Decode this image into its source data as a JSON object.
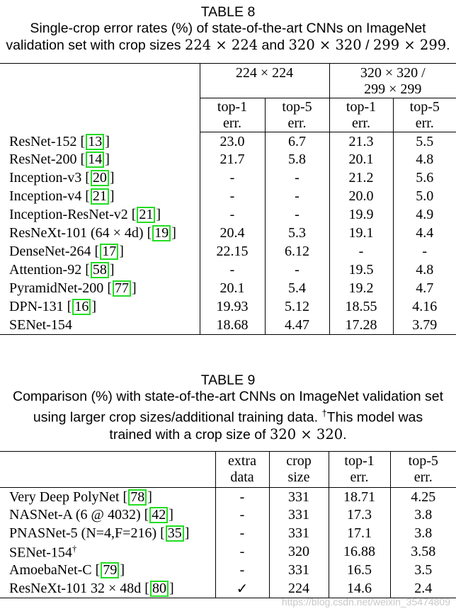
{
  "table8": {
    "label": "TABLE 8",
    "caption_line1": "Single-crop error rates (%) of state-of-the-art CNNs on ImageNet",
    "caption_line2_prefix": "validation set with crop sizes ",
    "caption_line2_math1": "224 × 224",
    "caption_line2_mid": " and ",
    "caption_line2_math2": "320 × 320",
    "caption_line2_suffix": " / ",
    "caption_line2_math3": "299 × 299",
    "caption_line2_end": ".",
    "group1": "224 × 224",
    "group2_line1": "320 × 320 /",
    "group2_line2": "299 × 299",
    "col_top1_a": "top-1",
    "col_err_a": "err.",
    "col_top5_a": "top-5",
    "col_err_b": "err.",
    "col_top1_b": "top-1",
    "col_err_c": "err.",
    "col_top5_b": "top-5",
    "col_err_d": "err.",
    "rows": [
      {
        "name": "ResNet-152 ",
        "ref": "13",
        "v": [
          "23.0",
          "6.7",
          "21.3",
          "5.5"
        ]
      },
      {
        "name": "ResNet-200 ",
        "ref": "14",
        "v": [
          "21.7",
          "5.8",
          "20.1",
          "4.8"
        ]
      },
      {
        "name": "Inception-v3 ",
        "ref": "20",
        "v": [
          "-",
          "-",
          "21.2",
          "5.6"
        ]
      },
      {
        "name": "Inception-v4 ",
        "ref": "21",
        "v": [
          "-",
          "-",
          "20.0",
          "5.0"
        ]
      },
      {
        "name": "Inception-ResNet-v2 ",
        "ref": "21",
        "v": [
          "-",
          "-",
          "19.9",
          "4.9"
        ]
      },
      {
        "name": "ResNeXt-101 (64 × 4d) ",
        "ref": "19",
        "v": [
          "20.4",
          "5.3",
          "19.1",
          "4.4"
        ]
      },
      {
        "name": "DenseNet-264 ",
        "ref": "17",
        "v": [
          "22.15",
          "6.12",
          "-",
          "-"
        ]
      },
      {
        "name": "Attention-92 ",
        "ref": "58",
        "v": [
          "-",
          "-",
          "19.5",
          "4.8"
        ]
      },
      {
        "name": "PyramidNet-200 ",
        "ref": "77",
        "v": [
          "20.1",
          "5.4",
          "19.2",
          "4.7"
        ]
      },
      {
        "name": "DPN-131 ",
        "ref": "16",
        "v": [
          "19.93",
          "5.12",
          "18.55",
          "4.16"
        ]
      },
      {
        "name": "SENet-154",
        "ref": "",
        "v": [
          "18.68",
          "4.47",
          "17.28",
          "3.79"
        ]
      }
    ]
  },
  "table9": {
    "label": "TABLE 9",
    "caption_line1": "Comparison (%) with state-of-the-art CNNs on ImageNet validation set",
    "caption_line2_text": "using larger crop sizes/additional training data. ",
    "caption_line2_dagger": "†",
    "caption_line2_rest": "This model was",
    "caption_line3_prefix": "trained with a crop size of ",
    "caption_line3_math": "320 × 320",
    "caption_line3_end": ".",
    "col_extra1": "extra",
    "col_extra2": "data",
    "col_crop1": "crop",
    "col_crop2": "size",
    "col_top1": "top-1",
    "col_err1": "err.",
    "col_top5": "top-5",
    "col_err2": "err.",
    "rows": [
      {
        "name": "Very Deep PolyNet ",
        "ref": "78",
        "dagger": "",
        "v": [
          "-",
          "331",
          "18.71",
          "4.25"
        ]
      },
      {
        "name": "NASNet-A (6 @ 4032) ",
        "ref": "42",
        "dagger": "",
        "v": [
          "-",
          "331",
          "17.3",
          "3.8"
        ]
      },
      {
        "name": "PNASNet-5 (N=4,F=216) ",
        "ref": "35",
        "dagger": "",
        "v": [
          "-",
          "331",
          "17.1",
          "3.8"
        ]
      },
      {
        "name": "SENet-154",
        "ref": "",
        "dagger": "†",
        "v": [
          "-",
          "320",
          "16.88",
          "3.58"
        ]
      },
      {
        "name": "AmoebaNet-C ",
        "ref": "79",
        "dagger": "",
        "v": [
          "-",
          "331",
          "16.5",
          "3.5"
        ]
      },
      {
        "name": "ResNeXt-101 32 × 48d ",
        "ref": "80",
        "dagger": "",
        "v": [
          "✓",
          "224",
          "14.6",
          "2.4"
        ]
      }
    ]
  },
  "watermark": "https://blog.csdn.net/weixin_35474809"
}
